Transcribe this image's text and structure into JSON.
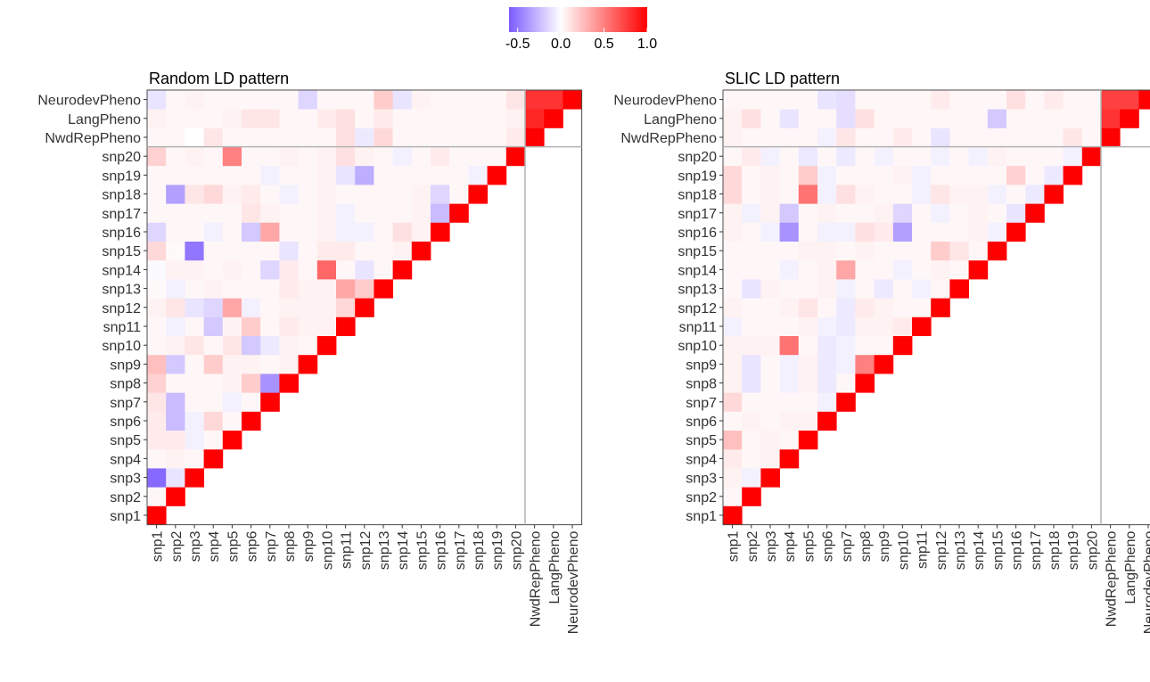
{
  "legend": {
    "ticks": [
      -0.5,
      0.0,
      0.5,
      1.0
    ],
    "tick_labels": [
      "-0.5",
      "0.0",
      "0.5",
      "1.0"
    ],
    "domain": [
      -0.6,
      1.0
    ],
    "colors": {
      "low": "#7b5cff",
      "mid": "#ffffff",
      "high": "#ff0000"
    }
  },
  "chart_data": [
    {
      "type": "heatmap",
      "title": "Random LD pattern",
      "x_labels": [
        "snp1",
        "snp2",
        "snp3",
        "snp4",
        "snp5",
        "snp6",
        "snp7",
        "snp8",
        "snp9",
        "snp10",
        "snp11",
        "snp12",
        "snp13",
        "snp14",
        "snp15",
        "snp16",
        "snp17",
        "snp18",
        "snp19",
        "snp20",
        "NwdRepPheno",
        "LangPheno",
        "NeurodevPheno"
      ],
      "y_labels": [
        "snp1",
        "snp2",
        "snp3",
        "snp4",
        "snp5",
        "snp6",
        "snp7",
        "snp8",
        "snp9",
        "snp10",
        "snp11",
        "snp12",
        "snp13",
        "snp14",
        "snp15",
        "snp16",
        "snp17",
        "snp18",
        "snp19",
        "snp20",
        "NwdRepPheno",
        "LangPheno",
        "NeurodevPheno"
      ],
      "matrix": [
        [
          1,
          0.03,
          -0.55,
          0.03,
          0.08,
          0.08,
          0.1,
          0.18,
          0.25,
          0.03,
          0.03,
          0.05,
          0.02,
          -0.02,
          0.15,
          -0.15,
          0.03,
          0.03,
          0.03,
          0.18,
          0.03,
          0.05,
          -0.1
        ],
        [
          null,
          1,
          -0.1,
          0.05,
          0.08,
          -0.25,
          -0.25,
          0.03,
          -0.2,
          0.05,
          -0.05,
          0.1,
          -0.05,
          0.05,
          0.02,
          0.03,
          0.03,
          -0.35,
          0.03,
          0.03,
          0.03,
          0.03,
          0.03
        ],
        [
          null,
          null,
          1,
          0.03,
          -0.05,
          -0.05,
          0.03,
          0.03,
          0.03,
          0.1,
          0.03,
          -0.1,
          0.03,
          0.05,
          -0.5,
          0.03,
          0.03,
          0.1,
          0.03,
          0.05,
          0,
          0.03,
          0.05
        ],
        [
          null,
          null,
          null,
          1,
          0.03,
          0.15,
          0.03,
          0.03,
          0.2,
          0.03,
          -0.2,
          -0.15,
          0.05,
          0.03,
          0.03,
          -0.05,
          0.03,
          0.15,
          0.03,
          0.03,
          0.1,
          0.03,
          0.03
        ],
        [
          null,
          null,
          null,
          null,
          1,
          0.03,
          -0.05,
          0.05,
          0.05,
          0.1,
          0.05,
          0.35,
          0.03,
          0.05,
          0.03,
          0.03,
          0.03,
          0.05,
          0.03,
          0.5,
          0.03,
          0.05,
          0.03
        ],
        [
          null,
          null,
          null,
          null,
          null,
          1,
          0.03,
          0.2,
          0.05,
          -0.2,
          0.2,
          -0.05,
          0.03,
          0.03,
          0.03,
          -0.2,
          0.1,
          0.08,
          0.03,
          0.03,
          0.03,
          0.1,
          0.03
        ],
        [
          null,
          null,
          null,
          null,
          null,
          null,
          1,
          -0.4,
          0.03,
          -0.08,
          0.03,
          0.03,
          0.03,
          -0.15,
          0.03,
          0.35,
          0.05,
          0.03,
          -0.05,
          0.03,
          0.03,
          0.1,
          0.03
        ],
        [
          null,
          null,
          null,
          null,
          null,
          null,
          null,
          1,
          0.05,
          0.05,
          0.08,
          0.05,
          0.08,
          0.08,
          -0.1,
          0.03,
          0.03,
          -0.05,
          0.03,
          0.05,
          0.03,
          0.03,
          0.03
        ],
        [
          null,
          null,
          null,
          null,
          null,
          null,
          null,
          null,
          1,
          0.03,
          0.05,
          0.05,
          0.05,
          0.03,
          0.03,
          0.03,
          0.03,
          0.03,
          0.03,
          0.03,
          0.03,
          0.03,
          -0.15
        ],
        [
          null,
          null,
          null,
          null,
          null,
          null,
          null,
          null,
          null,
          1,
          0.05,
          0.05,
          0.05,
          0.6,
          0.08,
          0.05,
          0.05,
          0.05,
          0.05,
          0.05,
          0.03,
          0.08,
          0.03
        ],
        [
          null,
          null,
          null,
          null,
          null,
          null,
          null,
          null,
          null,
          null,
          1,
          0.15,
          0.35,
          0.03,
          0.08,
          -0.05,
          -0.05,
          0.03,
          -0.1,
          0.12,
          0.12,
          0.12,
          0.03
        ],
        [
          null,
          null,
          null,
          null,
          null,
          null,
          null,
          null,
          null,
          null,
          null,
          1,
          0.2,
          -0.1,
          0.03,
          -0.05,
          0.03,
          0.03,
          -0.3,
          0.05,
          -0.08,
          0.03,
          0.03
        ],
        [
          null,
          null,
          null,
          null,
          null,
          null,
          null,
          null,
          null,
          null,
          null,
          null,
          1,
          0.03,
          0.03,
          0.03,
          0.03,
          0.03,
          0.03,
          0.03,
          0.15,
          0.08,
          0.2
        ],
        [
          null,
          null,
          null,
          null,
          null,
          null,
          null,
          null,
          null,
          null,
          null,
          null,
          null,
          1,
          0.05,
          0.12,
          0.03,
          0.03,
          0.03,
          -0.05,
          0.03,
          0.03,
          -0.1
        ],
        [
          null,
          null,
          null,
          null,
          null,
          null,
          null,
          null,
          null,
          null,
          null,
          null,
          null,
          null,
          1,
          0.05,
          0.05,
          0.05,
          0.03,
          0.03,
          0.03,
          0.03,
          0.05
        ],
        [
          null,
          null,
          null,
          null,
          null,
          null,
          null,
          null,
          null,
          null,
          null,
          null,
          null,
          null,
          null,
          1,
          -0.25,
          -0.15,
          0.03,
          0.08,
          0.03,
          0.03,
          0.03
        ],
        [
          null,
          null,
          null,
          null,
          null,
          null,
          null,
          null,
          null,
          null,
          null,
          null,
          null,
          null,
          null,
          null,
          1,
          0.03,
          0.03,
          0.03,
          0.03,
          0.03,
          0.03
        ],
        [
          null,
          null,
          null,
          null,
          null,
          null,
          null,
          null,
          null,
          null,
          null,
          null,
          null,
          null,
          null,
          null,
          null,
          1,
          -0.05,
          0.03,
          0.03,
          0.03,
          0.03
        ],
        [
          null,
          null,
          null,
          null,
          null,
          null,
          null,
          null,
          null,
          null,
          null,
          null,
          null,
          null,
          null,
          null,
          null,
          null,
          1,
          0.03,
          0.03,
          0.03,
          0.03
        ],
        [
          null,
          null,
          null,
          null,
          null,
          null,
          null,
          null,
          null,
          null,
          null,
          null,
          null,
          null,
          null,
          null,
          null,
          null,
          null,
          1,
          0.08,
          0.05,
          0.1
        ],
        [
          null,
          null,
          null,
          null,
          null,
          null,
          null,
          null,
          null,
          null,
          null,
          null,
          null,
          null,
          null,
          null,
          null,
          null,
          null,
          null,
          1,
          0.85,
          0.8
        ],
        [
          null,
          null,
          null,
          null,
          null,
          null,
          null,
          null,
          null,
          null,
          null,
          null,
          null,
          null,
          null,
          null,
          null,
          null,
          null,
          null,
          null,
          1,
          0.8
        ],
        [
          null,
          null,
          null,
          null,
          null,
          null,
          null,
          null,
          null,
          null,
          null,
          null,
          null,
          null,
          null,
          null,
          null,
          null,
          null,
          null,
          null,
          null,
          1
        ]
      ]
    },
    {
      "type": "heatmap",
      "title": "SLIC LD pattern",
      "x_labels": [
        "snp1",
        "snp2",
        "snp3",
        "snp4",
        "snp5",
        "snp6",
        "snp7",
        "snp8",
        "snp9",
        "snp10",
        "snp11",
        "snp12",
        "snp13",
        "snp14",
        "snp15",
        "snp16",
        "snp17",
        "snp18",
        "snp19",
        "snp20",
        "NwdRepPheno",
        "LangPheno",
        "NeurodevPheno"
      ],
      "y_labels": [
        "snp1",
        "snp2",
        "snp3",
        "snp4",
        "snp5",
        "snp6",
        "snp7",
        "snp8",
        "snp9",
        "snp10",
        "snp11",
        "snp12",
        "snp13",
        "snp14",
        "snp15",
        "snp16",
        "snp17",
        "snp18",
        "snp19",
        "snp20",
        "NwdRepPheno",
        "LangPheno",
        "NeurodevPheno"
      ],
      "matrix": [
        [
          1,
          0.03,
          0.05,
          0.08,
          0.25,
          0.03,
          0.15,
          0.05,
          0.05,
          0.05,
          -0.05,
          0.05,
          0.03,
          0.03,
          0.03,
          0.05,
          0.05,
          0.15,
          0.15,
          0.03,
          0.05,
          0.05,
          0.03
        ],
        [
          null,
          1,
          -0.05,
          0.03,
          0.03,
          0.05,
          0.03,
          -0.1,
          -0.1,
          0.05,
          0.03,
          0.03,
          -0.1,
          0.03,
          0.03,
          0.03,
          -0.05,
          0.03,
          0.03,
          0.08,
          0.03,
          0.12,
          0.03
        ],
        [
          null,
          null,
          1,
          0.05,
          0.05,
          0.03,
          0.03,
          0.03,
          0.03,
          0.05,
          0.03,
          0.03,
          0.05,
          0.03,
          0.03,
          -0.05,
          0.05,
          0.05,
          0.05,
          -0.05,
          0.03,
          0.03,
          0.03
        ],
        [
          null,
          null,
          null,
          1,
          0.03,
          0.05,
          0.03,
          -0.05,
          -0.05,
          0.55,
          0.03,
          0.05,
          0.03,
          -0.05,
          0.03,
          -0.4,
          -0.2,
          0.03,
          0.03,
          0.03,
          0.03,
          -0.1,
          0.03
        ],
        [
          null,
          null,
          null,
          null,
          1,
          0.05,
          0.03,
          0.05,
          0.05,
          0.03,
          0.05,
          0.1,
          0.03,
          0.03,
          0.05,
          0.03,
          0.03,
          0.55,
          0.2,
          -0.08,
          0.03,
          0.03,
          0.03
        ],
        [
          null,
          null,
          null,
          null,
          null,
          1,
          -0.05,
          -0.08,
          -0.08,
          -0.08,
          -0.05,
          0.03,
          0.05,
          0.05,
          0.05,
          -0.05,
          0.05,
          -0.05,
          -0.05,
          0.03,
          -0.05,
          0.03,
          -0.1
        ],
        [
          null,
          null,
          null,
          null,
          null,
          null,
          1,
          0.03,
          -0.05,
          -0.05,
          -0.08,
          -0.08,
          -0.05,
          0.35,
          0.03,
          -0.05,
          0.03,
          0.12,
          0.03,
          -0.08,
          0.1,
          -0.12,
          -0.12
        ],
        [
          null,
          null,
          null,
          null,
          null,
          null,
          null,
          1,
          0.5,
          0.03,
          0.05,
          0.08,
          0.03,
          0.03,
          0.05,
          0.12,
          0.03,
          0.05,
          0.03,
          0.03,
          0.03,
          0.12,
          0.03
        ],
        [
          null,
          null,
          null,
          null,
          null,
          null,
          null,
          null,
          1,
          0.03,
          0.05,
          0.05,
          -0.08,
          0.03,
          0.03,
          0.08,
          0.05,
          0.03,
          0.03,
          -0.05,
          0.03,
          0.03,
          0.03
        ],
        [
          null,
          null,
          null,
          null,
          null,
          null,
          null,
          null,
          null,
          1,
          0.08,
          0.03,
          0.03,
          -0.05,
          0.03,
          -0.35,
          -0.15,
          0.03,
          0.05,
          0.03,
          0.08,
          0.03,
          0.03
        ],
        [
          null,
          null,
          null,
          null,
          null,
          null,
          null,
          null,
          null,
          null,
          1,
          0.03,
          -0.05,
          0.03,
          0.03,
          0.03,
          0.03,
          -0.05,
          -0.05,
          0.03,
          0.03,
          0.03,
          0.03
        ],
        [
          null,
          null,
          null,
          null,
          null,
          null,
          null,
          null,
          null,
          null,
          null,
          1,
          0.03,
          0.05,
          0.2,
          0.03,
          -0.05,
          0.1,
          0.03,
          -0.05,
          -0.1,
          0.03,
          0.08
        ],
        [
          null,
          null,
          null,
          null,
          null,
          null,
          null,
          null,
          null,
          null,
          null,
          null,
          1,
          0.03,
          0.1,
          0.03,
          0.03,
          0.05,
          0.03,
          0.03,
          0.03,
          0.03,
          0.03
        ],
        [
          null,
          null,
          null,
          null,
          null,
          null,
          null,
          null,
          null,
          null,
          null,
          null,
          null,
          1,
          0.03,
          0.05,
          0.05,
          0.05,
          0.03,
          -0.05,
          0.03,
          0.03,
          0.03
        ],
        [
          null,
          null,
          null,
          null,
          null,
          null,
          null,
          null,
          null,
          null,
          null,
          null,
          null,
          null,
          1,
          -0.05,
          0.03,
          -0.05,
          0.03,
          0.05,
          0.03,
          -0.2,
          0.03
        ],
        [
          null,
          null,
          null,
          null,
          null,
          null,
          null,
          null,
          null,
          null,
          null,
          null,
          null,
          null,
          null,
          1,
          -0.1,
          0.03,
          0.18,
          0.03,
          0.03,
          0.03,
          0.12
        ],
        [
          null,
          null,
          null,
          null,
          null,
          null,
          null,
          null,
          null,
          null,
          null,
          null,
          null,
          null,
          null,
          null,
          1,
          -0.08,
          0.03,
          0.03,
          0.03,
          0.03,
          0.03
        ],
        [
          null,
          null,
          null,
          null,
          null,
          null,
          null,
          null,
          null,
          null,
          null,
          null,
          null,
          null,
          null,
          null,
          null,
          1,
          -0.08,
          0.03,
          0.03,
          0.03,
          0.08
        ],
        [
          null,
          null,
          null,
          null,
          null,
          null,
          null,
          null,
          null,
          null,
          null,
          null,
          null,
          null,
          null,
          null,
          null,
          null,
          1,
          -0.05,
          0.1,
          0.03,
          0.03
        ],
        [
          null,
          null,
          null,
          null,
          null,
          null,
          null,
          null,
          null,
          null,
          null,
          null,
          null,
          null,
          null,
          null,
          null,
          null,
          null,
          1,
          0.03,
          0.03,
          0.03
        ],
        [
          null,
          null,
          null,
          null,
          null,
          null,
          null,
          null,
          null,
          null,
          null,
          null,
          null,
          null,
          null,
          null,
          null,
          null,
          null,
          null,
          1,
          0.8,
          0.75
        ],
        [
          null,
          null,
          null,
          null,
          null,
          null,
          null,
          null,
          null,
          null,
          null,
          null,
          null,
          null,
          null,
          null,
          null,
          null,
          null,
          null,
          null,
          1,
          0.75
        ],
        [
          null,
          null,
          null,
          null,
          null,
          null,
          null,
          null,
          null,
          null,
          null,
          null,
          null,
          null,
          null,
          null,
          null,
          null,
          null,
          null,
          null,
          null,
          1
        ]
      ]
    }
  ]
}
